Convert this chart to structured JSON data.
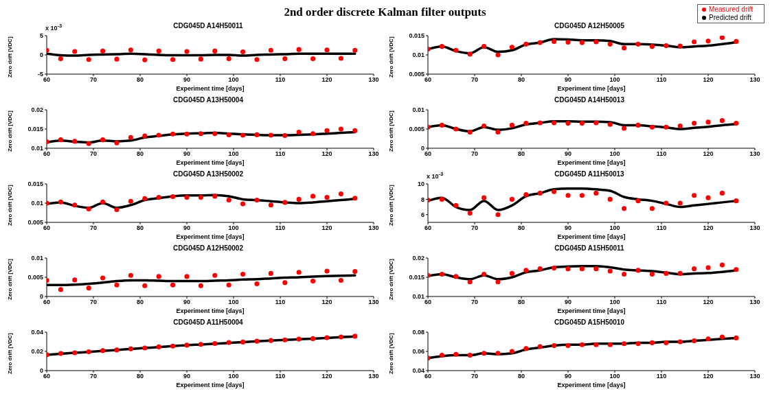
{
  "chart_data": [
    {
      "type": "other",
      "title": "2nd order discrete Kalman filter outputs"
    },
    {
      "type": "line",
      "title": "CDG045D A14H50011",
      "xlabel": "Experiment time [days]",
      "ylabel": "Zero drift [VDC]",
      "annotations": [
        "x 10$^{-3}$"
      ],
      "xlim": [
        60,
        130
      ],
      "xticks": [
        60,
        70,
        80,
        90,
        100,
        110,
        120,
        130
      ],
      "ylim": [
        -5,
        5
      ],
      "yticks": [
        -5,
        0,
        5
      ],
      "x": [
        60,
        63,
        66,
        69,
        72,
        75,
        78,
        81,
        84,
        87,
        90,
        93,
        96,
        99,
        102,
        105,
        108,
        111,
        114,
        117,
        120,
        123,
        126
      ],
      "series": [
        {
          "type": "scatter",
          "color": "#ff0000",
          "values": [
            1.2,
            -1.0,
            0.9,
            -1.2,
            1.0,
            -1.1,
            1.3,
            -1.3,
            1.0,
            -1.2,
            0.9,
            -1.1,
            1.0,
            -1.0,
            0.8,
            -1.2,
            1.2,
            -1.0,
            1.4,
            -1.0,
            1.3,
            -0.9,
            1.2
          ]
        },
        {
          "type": "line",
          "color": "#000000",
          "values": [
            0.3,
            -0.1,
            -0.2,
            0,
            0.1,
            0.2,
            0.3,
            0.2,
            0,
            -0.1,
            -0.1,
            -0.1,
            0,
            0,
            -0.2,
            0,
            0.1,
            0.2,
            0.3,
            0.3,
            0.3,
            0.3,
            0.3
          ]
        }
      ]
    },
    {
      "type": "line",
      "title": "CDG045D A12H50005",
      "xlabel": "Experiment time [days]",
      "ylabel": "Zero drift [VDC]",
      "legend": "top right",
      "xlim": [
        60,
        130
      ],
      "xticks": [
        60,
        70,
        80,
        90,
        100,
        110,
        120,
        130
      ],
      "ylim": [
        0.005,
        0.015
      ],
      "yticks": [
        0.005,
        0.01,
        0.015
      ],
      "x": [
        60,
        63,
        66,
        69,
        72,
        75,
        78,
        81,
        84,
        87,
        90,
        93,
        96,
        99,
        102,
        105,
        108,
        111,
        114,
        117,
        120,
        123,
        126
      ],
      "series": [
        {
          "type": "scatter",
          "name": "Measured drift",
          "color": "#ff0000",
          "values": [
            0.0115,
            0.0122,
            0.0112,
            0.0102,
            0.0122,
            0.01,
            0.012,
            0.0128,
            0.0132,
            0.0135,
            0.0133,
            0.0132,
            0.0134,
            0.0128,
            0.0118,
            0.0128,
            0.0122,
            0.0124,
            0.0123,
            0.0134,
            0.0136,
            0.0145,
            0.0135
          ]
        },
        {
          "type": "line",
          "name": "Predicted drift",
          "color": "#000000",
          "values": [
            0.0115,
            0.0122,
            0.011,
            0.0104,
            0.012,
            0.0108,
            0.0112,
            0.0127,
            0.0132,
            0.0141,
            0.014,
            0.0138,
            0.0138,
            0.0136,
            0.0128,
            0.0128,
            0.0127,
            0.0124,
            0.012,
            0.0122,
            0.0124,
            0.0128,
            0.0133
          ]
        }
      ]
    },
    {
      "type": "line",
      "title": "CDG045D A13H50004",
      "xlabel": "Experiment time [days]",
      "ylabel": "Zero drift [VDC]",
      "xlim": [
        60,
        130
      ],
      "xticks": [
        60,
        70,
        80,
        90,
        100,
        110,
        120,
        130
      ],
      "ylim": [
        0.01,
        0.02
      ],
      "yticks": [
        0.01,
        0.015,
        0.02
      ],
      "x": [
        60,
        63,
        66,
        69,
        72,
        75,
        78,
        81,
        84,
        87,
        90,
        93,
        96,
        99,
        102,
        105,
        108,
        111,
        114,
        117,
        120,
        123,
        126
      ],
      "series": [
        {
          "type": "scatter",
          "color": "#ff0000",
          "values": [
            0.0117,
            0.0122,
            0.0118,
            0.0112,
            0.0122,
            0.0114,
            0.0128,
            0.0132,
            0.0134,
            0.0137,
            0.0137,
            0.0138,
            0.0138,
            0.0135,
            0.0134,
            0.0135,
            0.0134,
            0.0133,
            0.0142,
            0.0138,
            0.0146,
            0.015,
            0.0146
          ]
        },
        {
          "type": "line",
          "color": "#000000",
          "values": [
            0.0115,
            0.012,
            0.0117,
            0.0115,
            0.012,
            0.0118,
            0.012,
            0.0128,
            0.0132,
            0.0136,
            0.0138,
            0.0139,
            0.014,
            0.0138,
            0.0136,
            0.0135,
            0.0134,
            0.0134,
            0.0135,
            0.0136,
            0.0138,
            0.014,
            0.0142
          ]
        }
      ]
    },
    {
      "type": "line",
      "title": "CDG045D A14H50013",
      "xlabel": "Experiment time [days]",
      "ylabel": "Zero drift [VDC]",
      "xlim": [
        60,
        130
      ],
      "xticks": [
        60,
        70,
        80,
        90,
        100,
        110,
        120,
        130
      ],
      "ylim": [
        0,
        0.01
      ],
      "yticks": [
        0,
        0.005,
        0.01
      ],
      "x": [
        60,
        63,
        66,
        69,
        72,
        75,
        78,
        81,
        84,
        87,
        90,
        93,
        96,
        99,
        102,
        105,
        108,
        111,
        114,
        117,
        120,
        123,
        126
      ],
      "series": [
        {
          "type": "scatter",
          "color": "#ff0000",
          "values": [
            0.0055,
            0.006,
            0.005,
            0.0042,
            0.0058,
            0.0042,
            0.006,
            0.0065,
            0.0066,
            0.0066,
            0.0065,
            0.0065,
            0.0066,
            0.0062,
            0.0052,
            0.006,
            0.0055,
            0.0055,
            0.0058,
            0.0065,
            0.0068,
            0.0072,
            0.0065
          ]
        },
        {
          "type": "line",
          "color": "#000000",
          "values": [
            0.0055,
            0.006,
            0.005,
            0.0044,
            0.0055,
            0.0048,
            0.0052,
            0.0062,
            0.0066,
            0.007,
            0.007,
            0.0069,
            0.0069,
            0.0068,
            0.006,
            0.006,
            0.0057,
            0.0054,
            0.005,
            0.0053,
            0.0056,
            0.006,
            0.0063
          ]
        }
      ]
    },
    {
      "type": "line",
      "title": "CDG045D A13H50002",
      "xlabel": "Experiment time [days]",
      "ylabel": "Zero drift [VDC]",
      "xlim": [
        60,
        130
      ],
      "xticks": [
        60,
        70,
        80,
        90,
        100,
        110,
        120,
        130
      ],
      "ylim": [
        0.005,
        0.015
      ],
      "yticks": [
        0.005,
        0.01,
        0.015
      ],
      "x": [
        60,
        63,
        66,
        69,
        72,
        75,
        78,
        81,
        84,
        87,
        90,
        93,
        96,
        99,
        102,
        105,
        108,
        111,
        114,
        117,
        120,
        123,
        126
      ],
      "series": [
        {
          "type": "scatter",
          "color": "#ff0000",
          "values": [
            0.01,
            0.0103,
            0.0095,
            0.0085,
            0.0103,
            0.0083,
            0.0105,
            0.0112,
            0.0115,
            0.0117,
            0.0115,
            0.0115,
            0.0118,
            0.0108,
            0.0098,
            0.0108,
            0.0095,
            0.0102,
            0.011,
            0.0118,
            0.0115,
            0.0124,
            0.0113
          ]
        },
        {
          "type": "line",
          "color": "#000000",
          "values": [
            0.0098,
            0.0102,
            0.0093,
            0.0088,
            0.01,
            0.0088,
            0.0095,
            0.0108,
            0.0113,
            0.0118,
            0.012,
            0.012,
            0.0121,
            0.0118,
            0.011,
            0.0108,
            0.0105,
            0.0102,
            0.01,
            0.0102,
            0.0105,
            0.0108,
            0.0111
          ]
        }
      ]
    },
    {
      "type": "line",
      "title": "CDG045D A11H50013",
      "xlabel": "Experiment time [days]",
      "ylabel": "Zero drift [VDC]",
      "annotations": [
        "x 10$^{-3}$"
      ],
      "xlim": [
        60,
        130
      ],
      "xticks": [
        60,
        70,
        80,
        90,
        100,
        110,
        120,
        130
      ],
      "ylim": [
        5,
        10
      ],
      "yticks": [
        6,
        8,
        10
      ],
      "x": [
        60,
        63,
        66,
        69,
        72,
        75,
        78,
        81,
        84,
        87,
        90,
        93,
        96,
        99,
        102,
        105,
        108,
        111,
        114,
        117,
        120,
        123,
        126
      ],
      "series": [
        {
          "type": "scatter",
          "color": "#ff0000",
          "values": [
            7.9,
            8.0,
            7.2,
            6.2,
            8.2,
            6.0,
            8.0,
            8.6,
            8.8,
            9.0,
            8.5,
            8.5,
            8.8,
            8.0,
            6.8,
            7.8,
            6.8,
            7.5,
            7.5,
            8.5,
            8.2,
            8.8,
            7.8
          ]
        },
        {
          "type": "line",
          "color": "#000000",
          "values": [
            7.8,
            8.2,
            7.0,
            6.6,
            7.8,
            6.6,
            7.2,
            8.4,
            8.8,
            9.3,
            9.4,
            9.4,
            9.3,
            9.1,
            8.3,
            8.0,
            7.8,
            7.4,
            7.0,
            7.2,
            7.4,
            7.6,
            7.8
          ]
        }
      ]
    },
    {
      "type": "line",
      "title": "CDG045D A12H50002",
      "xlabel": "Experiment time [days]",
      "ylabel": "Zero drift [VDC]",
      "xlim": [
        60,
        130
      ],
      "xticks": [
        60,
        70,
        80,
        90,
        100,
        110,
        120,
        130
      ],
      "ylim": [
        0,
        0.01
      ],
      "yticks": [
        0,
        0.005,
        0.01
      ],
      "x": [
        60,
        63,
        66,
        69,
        72,
        75,
        78,
        81,
        84,
        87,
        90,
        93,
        96,
        99,
        102,
        105,
        108,
        111,
        114,
        117,
        120,
        123,
        126
      ],
      "series": [
        {
          "type": "scatter",
          "color": "#ff0000",
          "values": [
            0.0042,
            0.0018,
            0.0043,
            0.0022,
            0.0048,
            0.003,
            0.0055,
            0.0028,
            0.0052,
            0.003,
            0.0052,
            0.0028,
            0.0055,
            0.003,
            0.0058,
            0.0033,
            0.006,
            0.0036,
            0.0063,
            0.004,
            0.0066,
            0.0042,
            0.0065
          ]
        },
        {
          "type": "line",
          "color": "#000000",
          "values": [
            0.003,
            0.003,
            0.0031,
            0.0033,
            0.0036,
            0.004,
            0.0042,
            0.0042,
            0.0041,
            0.004,
            0.004,
            0.004,
            0.0041,
            0.0042,
            0.0044,
            0.0045,
            0.0047,
            0.0049,
            0.005,
            0.0052,
            0.0053,
            0.0054,
            0.0055
          ]
        }
      ]
    },
    {
      "type": "line",
      "title": "CDG045D A15H50011",
      "xlabel": "Experiment time [days]",
      "ylabel": "Zero drift [VDC]",
      "xlim": [
        60,
        130
      ],
      "xticks": [
        60,
        70,
        80,
        90,
        100,
        110,
        120,
        130
      ],
      "ylim": [
        0.01,
        0.02
      ],
      "yticks": [
        0.01,
        0.015,
        0.02
      ],
      "x": [
        60,
        63,
        66,
        69,
        72,
        75,
        78,
        81,
        84,
        87,
        90,
        93,
        96,
        99,
        102,
        105,
        108,
        111,
        114,
        117,
        120,
        123,
        126
      ],
      "series": [
        {
          "type": "scatter",
          "color": "#ff0000",
          "values": [
            0.0155,
            0.0158,
            0.0152,
            0.0138,
            0.0158,
            0.0138,
            0.016,
            0.0168,
            0.0172,
            0.0174,
            0.0172,
            0.0172,
            0.0172,
            0.0166,
            0.0158,
            0.0168,
            0.0158,
            0.016,
            0.016,
            0.0172,
            0.0175,
            0.0182,
            0.017
          ]
        },
        {
          "type": "line",
          "color": "#000000",
          "values": [
            0.0153,
            0.0158,
            0.015,
            0.0145,
            0.0155,
            0.0145,
            0.015,
            0.0163,
            0.0168,
            0.0176,
            0.0178,
            0.0179,
            0.0179,
            0.0176,
            0.017,
            0.0168,
            0.0166,
            0.0162,
            0.0158,
            0.016,
            0.0161,
            0.0164,
            0.0168
          ]
        }
      ]
    },
    {
      "type": "line",
      "title": "CDG045D A11H50004",
      "xlabel": "Experiment time [days]",
      "ylabel": "Zero drift [VDC]",
      "xlim": [
        60,
        130
      ],
      "xticks": [
        60,
        70,
        80,
        90,
        100,
        110,
        120,
        130
      ],
      "ylim": [
        0,
        0.04
      ],
      "yticks": [
        0,
        0.02,
        0.04
      ],
      "x": [
        60,
        63,
        66,
        69,
        72,
        75,
        78,
        81,
        84,
        87,
        90,
        93,
        96,
        99,
        102,
        105,
        108,
        111,
        114,
        117,
        120,
        123,
        126
      ],
      "series": [
        {
          "type": "scatter",
          "color": "#ff0000",
          "values": [
            0.0165,
            0.0178,
            0.0186,
            0.0196,
            0.0208,
            0.0215,
            0.0226,
            0.0236,
            0.0247,
            0.0255,
            0.0265,
            0.0273,
            0.0282,
            0.0292,
            0.0297,
            0.0306,
            0.0313,
            0.032,
            0.0328,
            0.0333,
            0.0342,
            0.035,
            0.0358
          ]
        },
        {
          "type": "line",
          "color": "#000000",
          "values": [
            0.0165,
            0.0175,
            0.0185,
            0.0195,
            0.0205,
            0.0215,
            0.0225,
            0.0235,
            0.0245,
            0.0255,
            0.0265,
            0.0272,
            0.028,
            0.0288,
            0.0297,
            0.0305,
            0.0312,
            0.032,
            0.0326,
            0.0332,
            0.034,
            0.0348,
            0.0355
          ]
        }
      ]
    },
    {
      "type": "line",
      "title": "CDG045D A15H50010",
      "xlabel": "Experiment time [days]",
      "ylabel": "Zero drift [VDC]",
      "xlim": [
        60,
        130
      ],
      "xticks": [
        60,
        70,
        80,
        90,
        100,
        110,
        120,
        130
      ],
      "ylim": [
        0.04,
        0.08
      ],
      "yticks": [
        0.04,
        0.06,
        0.08
      ],
      "x": [
        60,
        63,
        66,
        69,
        72,
        75,
        78,
        81,
        84,
        87,
        90,
        93,
        96,
        99,
        102,
        105,
        108,
        111,
        114,
        117,
        120,
        123,
        126
      ],
      "series": [
        {
          "type": "scatter",
          "color": "#ff0000",
          "values": [
            0.053,
            0.056,
            0.057,
            0.056,
            0.058,
            0.058,
            0.06,
            0.063,
            0.065,
            0.066,
            0.066,
            0.067,
            0.067,
            0.067,
            0.068,
            0.068,
            0.069,
            0.069,
            0.07,
            0.071,
            0.073,
            0.075,
            0.074
          ]
        },
        {
          "type": "line",
          "color": "#000000",
          "values": [
            0.053,
            0.055,
            0.056,
            0.056,
            0.058,
            0.057,
            0.058,
            0.062,
            0.064,
            0.066,
            0.067,
            0.067,
            0.068,
            0.068,
            0.068,
            0.069,
            0.069,
            0.07,
            0.07,
            0.071,
            0.072,
            0.073,
            0.074
          ]
        }
      ]
    }
  ]
}
